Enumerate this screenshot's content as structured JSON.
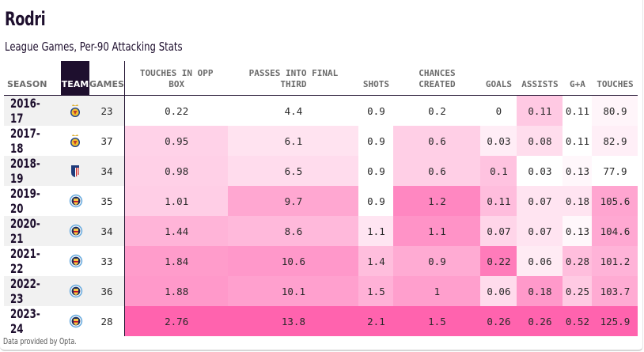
{
  "title": "Rodri",
  "subtitle": "League Games, Per-90 Attacking Stats",
  "footer": "Data provided by Opta.",
  "colors": {
    "header_dark": "#1e0f2e",
    "heat_low": "#ffffff",
    "heat_high": "#ff63ae",
    "alt_row": "#f1f1f1"
  },
  "chart_data": {
    "type": "table",
    "title": "Rodri",
    "subtitle": "League Games, Per-90 Attacking Stats",
    "columns": [
      "SEASON",
      "TEAM",
      "GAMES",
      "TOUCHES IN OPP BOX",
      "PASSES INTO FINAL THIRD",
      "SHOTS",
      "CHANCES CREATED",
      "GOALS",
      "ASSISTS",
      "G+A",
      "TOUCHES"
    ],
    "heatmap_columns": [
      "TOUCHES IN OPP BOX",
      "PASSES INTO FINAL THIRD",
      "SHOTS",
      "CHANCES CREATED",
      "GOALS",
      "ASSISTS",
      "G+A",
      "TOUCHES"
    ],
    "rows": [
      {
        "season": "2016-17",
        "team": "villarreal-crest-icon",
        "games": "23",
        "stats": [
          "0.22",
          "4.4",
          "0.9",
          "0.2",
          "0",
          "0.11",
          "0.11",
          "80.9"
        ]
      },
      {
        "season": "2017-18",
        "team": "villarreal-crest-icon",
        "games": "37",
        "stats": [
          "0.95",
          "6.1",
          "0.9",
          "0.6",
          "0.03",
          "0.08",
          "0.11",
          "82.9"
        ]
      },
      {
        "season": "2018-19",
        "team": "atletico-madrid-crest-icon",
        "games": "34",
        "stats": [
          "0.98",
          "6.5",
          "0.9",
          "0.6",
          "0.1",
          "0.03",
          "0.13",
          "77.9"
        ]
      },
      {
        "season": "2019-20",
        "team": "manchester-city-crest-icon",
        "games": "35",
        "stats": [
          "1.01",
          "9.7",
          "0.9",
          "1.2",
          "0.11",
          "0.07",
          "0.18",
          "105.6"
        ]
      },
      {
        "season": "2020-21",
        "team": "manchester-city-crest-icon",
        "games": "34",
        "stats": [
          "1.44",
          "8.6",
          "1.1",
          "1.1",
          "0.07",
          "0.07",
          "0.13",
          "104.6"
        ]
      },
      {
        "season": "2021-22",
        "team": "manchester-city-crest-icon",
        "games": "33",
        "stats": [
          "1.84",
          "10.6",
          "1.4",
          "0.9",
          "0.22",
          "0.06",
          "0.28",
          "101.2"
        ]
      },
      {
        "season": "2022-23",
        "team": "manchester-city-crest-icon",
        "games": "36",
        "stats": [
          "1.88",
          "10.1",
          "1.5",
          "1",
          "0.06",
          "0.18",
          "0.25",
          "103.7"
        ]
      },
      {
        "season": "2023-24",
        "team": "manchester-city-crest-icon",
        "games": "28",
        "stats": [
          "2.76",
          "13.8",
          "2.1",
          "1.5",
          "0.26",
          "0.26",
          "0.52",
          "125.9"
        ]
      }
    ]
  },
  "headers": {
    "season": "SEASON",
    "team": "TEAM",
    "games": "GAMES",
    "touches_opp_box_1": "TOUCHES IN OPP",
    "touches_opp_box_2": "BOX",
    "passes_final_third_1": "PASSES INTO FINAL",
    "passes_final_third_2": "THIRD",
    "shots": "SHOTS",
    "chances_1": "CHANCES",
    "chances_2": "CREATED",
    "goals": "GOALS",
    "assists": "ASSISTS",
    "ga": "G+A",
    "touches": "TOUCHES"
  }
}
